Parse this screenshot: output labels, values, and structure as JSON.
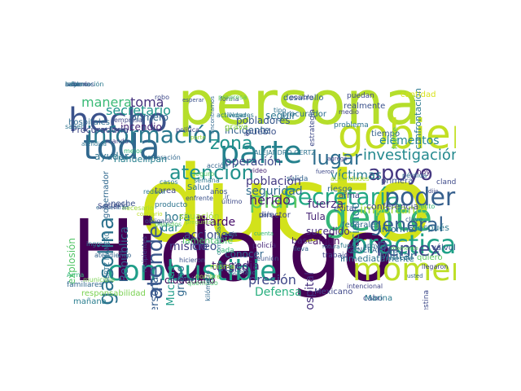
{
  "words": [
    {
      "text": "ducto",
      "color": "#d2e21b",
      "rotate": false
    },
    {
      "text": "Hidalgo",
      "color": "#440154",
      "rotate": false
    },
    {
      "text": "persona",
      "color": "#b5de2b",
      "rotate": false
    },
    {
      "text": "gobierno",
      "color": "#c2df23",
      "rotate": false
    },
    {
      "text": "combustible",
      "color": "#1f9e89",
      "rotate": false
    },
    {
      "text": "gente",
      "color": "#35b779",
      "rotate": false
    },
    {
      "text": "momento",
      "color": "#bddf26",
      "rotate": false
    },
    {
      "text": "toda",
      "color": "#31688e",
      "rotate": false
    },
    {
      "text": "hecho",
      "color": "#3b528b",
      "rotate": false
    },
    {
      "text": "parte",
      "color": "#26828e",
      "rotate": false
    },
    {
      "text": "información",
      "color": "#2a788e",
      "rotate": false
    },
    {
      "text": "Secretaría",
      "color": "#22a884",
      "rotate": false
    },
    {
      "text": "práctica",
      "color": "#1fa187",
      "rotate": false
    },
    {
      "text": "gasolina",
      "color": "#2c728e",
      "rotate": true
    },
    {
      "text": "poder",
      "color": "#355f8d",
      "rotate": false
    },
    {
      "text": "apoyo",
      "color": "#453781",
      "rotate": false
    },
    {
      "text": "atención",
      "color": "#21918c",
      "rotate": false
    },
    {
      "text": "lugar",
      "color": "#2e6e8e",
      "rotate": false
    },
    {
      "text": "general",
      "color": "#34618d",
      "rotate": false
    },
    {
      "text": "Pemex",
      "color": "#3e4a89",
      "rotate": false
    },
    {
      "text": "plan",
      "color": "#5ec962",
      "rotate": false
    },
    {
      "text": "atender",
      "color": "#39568c",
      "rotate": true
    },
    {
      "text": "zona",
      "color": "#20928c",
      "rotate": false
    },
    {
      "text": "investigación",
      "color": "#23898e",
      "rotate": false
    },
    {
      "text": "secretario",
      "color": "#1f968b",
      "rotate": false
    },
    {
      "text": "manera",
      "color": "#3aba76",
      "rotate": false
    },
    {
      "text": "toma",
      "color": "#46327e",
      "rotate": false
    },
    {
      "text": "elementos",
      "color": "#24878e",
      "rotate": false
    },
    {
      "text": "víctimas",
      "color": "#287d8e",
      "rotate": false
    },
    {
      "text": "importante",
      "color": "#a5db36",
      "rotate": false
    },
    {
      "text": "presión",
      "color": "#3f4788",
      "rotate": false
    },
    {
      "text": "Defensa",
      "color": "#29af7f",
      "rotate": false
    },
    {
      "text": "Militar",
      "color": "#2d708e",
      "rotate": false
    },
    {
      "text": "haciendo",
      "color": "#287c8e",
      "rotate": true
    },
    {
      "text": "población",
      "color": "#443a83",
      "rotate": false
    },
    {
      "text": "seguridad",
      "color": "#2f6c8e",
      "rotate": false
    },
    {
      "text": "herido",
      "color": "#482071",
      "rotate": false
    },
    {
      "text": "acciones",
      "color": "#3d4d8a",
      "rotate": false
    },
    {
      "text": "tarde",
      "color": "#450a69",
      "rotate": false
    },
    {
      "text": "mismo",
      "color": "#433e85",
      "rotate": false
    },
    {
      "text": "creo",
      "color": "#3c4f8a",
      "rotate": false
    },
    {
      "text": "hora",
      "color": "#2a768e",
      "rotate": false
    },
    {
      "text": "dar",
      "color": "#25848e",
      "rotate": false
    },
    {
      "text": "personal",
      "color": "#365c8d",
      "rotate": true
    },
    {
      "text": "grupo",
      "color": "#30698e",
      "rotate": true
    },
    {
      "text": "Muchas",
      "color": "#1e9c89",
      "rotate": true
    },
    {
      "text": "República",
      "color": "#33638d",
      "rotate": true
    },
    {
      "text": "explosión",
      "color": "#54c568",
      "rotate": true
    },
    {
      "text": "operación",
      "color": "#3e4989",
      "rotate": false
    },
    {
      "text": "fuerza",
      "color": "#482878",
      "rotate": false
    },
    {
      "text": "Hospital",
      "color": "#46307e",
      "rotate": true
    },
    {
      "text": "delito",
      "color": "#3b528b",
      "rotate": false
    },
    {
      "text": "conocer",
      "color": "#31688e",
      "rotate": false
    },
    {
      "text": "ciudadano",
      "color": "#440154",
      "rotate": false
    },
    {
      "text": "Tula",
      "color": "#482576",
      "rotate": false
    },
    {
      "text": "sucedido",
      "color": "#472d7b",
      "rotate": false
    },
    {
      "text": "algún",
      "color": "#471365",
      "rotate": false
    },
    {
      "text": "base",
      "color": "#472c7a",
      "rotate": false
    },
    {
      "text": "arma",
      "color": "#414487",
      "rotate": false
    },
    {
      "text": "evitar",
      "color": "#3a548c",
      "rotate": false
    },
    {
      "text": "conferencia",
      "color": "#3f4889",
      "rotate": false
    },
    {
      "text": "informar",
      "color": "#2b748e",
      "rotate": false
    },
    {
      "text": "seguir",
      "color": "#2a768e",
      "rotate": false
    },
    {
      "text": "procurador",
      "color": "#2e6f8e",
      "rotate": false
    },
    {
      "text": "pobladores",
      "color": "#38588c",
      "rotate": false
    },
    {
      "text": "incidente",
      "color": "#33628d",
      "rotate": false
    },
    {
      "text": "primero",
      "color": "#31668e",
      "rotate": false
    },
    {
      "text": "incendio",
      "color": "#482475",
      "rotate": false
    },
    {
      "text": "Procuraduría",
      "color": "#3f4788",
      "rotate": false
    },
    {
      "text": "hospitales",
      "color": "#2f6c8e",
      "rotate": false
    },
    {
      "text": "Tlahuelilpan",
      "color": "#27808e",
      "rotate": false
    },
    {
      "text": "ayudar",
      "color": "#2d718e",
      "rotate": false
    },
    {
      "text": "tiempo",
      "color": "#34618d",
      "rotate": false
    },
    {
      "text": "pueblo",
      "color": "#3b528b",
      "rotate": false
    },
    {
      "text": "tarea",
      "color": "#404588",
      "rotate": false
    },
    {
      "text": "Salud",
      "color": "#2e6d8e",
      "rotate": false
    },
    {
      "text": "producto",
      "color": "#2c738e",
      "rotate": false
    },
    {
      "text": "Mexicano",
      "color": "#3f4889",
      "rotate": false
    },
    {
      "text": "inmediatamente",
      "color": "#2c728e",
      "rotate": false
    },
    {
      "text": "después",
      "color": "#2a788e",
      "rotate": false
    },
    {
      "text": "quiero",
      "color": "#5ec962",
      "rotate": false
    },
    {
      "text": "cabo",
      "color": "#3e4989",
      "rotate": false
    },
    {
      "text": "mañana",
      "color": "#287d8e",
      "rotate": false
    },
    {
      "text": "familiares",
      "color": "#31688e",
      "rotate": false
    },
    {
      "text": "años",
      "color": "#3b528b",
      "rotate": false
    },
    {
      "text": "ALEJANDRO GERTZ",
      "color": "#2c728e",
      "rotate": false
    },
    {
      "text": "GENERAL LUIS",
      "color": "#33638d",
      "rotate": false
    },
    {
      "text": "responsabilidad",
      "color": "#7ad151",
      "rotate": false
    },
    {
      "text": "toma clandestina",
      "color": "#3e4a89",
      "rotate": true
    },
    {
      "text": "Marina",
      "color": "#2a788e",
      "rotate": false
    },
    {
      "text": "intencional",
      "color": "#414487",
      "rotate": false
    },
    {
      "text": "policía",
      "color": "#482878",
      "rotate": false
    },
    {
      "text": "reunión",
      "color": "#3b528b",
      "rotate": false
    },
    {
      "text": "trabajo",
      "color": "#3f4788",
      "rotate": false
    },
    {
      "text": "federales",
      "color": "#31688e",
      "rotate": false
    },
    {
      "text": "riesgo",
      "color": "#33638d",
      "rotate": false
    },
    {
      "text": "válvula",
      "color": "#3b528b",
      "rotate": false
    },
    {
      "text": "confrontación",
      "color": "#2a788e",
      "rotate": true
    },
    {
      "text": "cantidad",
      "color": "#d8e219",
      "rotate": false
    },
    {
      "text": "problema",
      "color": "#2c728e",
      "rotate": false
    },
    {
      "text": "estrategia",
      "color": "#3e4989",
      "rotate": true
    },
    {
      "text": "situación",
      "color": "#a0da39",
      "rotate": false
    },
    {
      "text": "gobernador",
      "color": "#31688e",
      "rotate": true
    },
    {
      "text": "lamentable",
      "color": "#4ac16d",
      "rotate": false
    },
    {
      "text": "tragedia",
      "color": "#482475",
      "rotate": false
    },
    {
      "text": "grave",
      "color": "#8fd744",
      "rotate": false
    },
    {
      "text": "llegar",
      "color": "#2a788e",
      "rotate": false
    },
    {
      "text": "seguro",
      "color": "#5ec962",
      "rotate": false
    },
    {
      "text": "salida",
      "color": "#33638d",
      "rotate": false
    },
    {
      "text": "director",
      "color": "#3f4788",
      "rotate": false
    },
    {
      "text": "misma",
      "color": "#a5db36",
      "rotate": false
    },
    {
      "text": "cada",
      "color": "#35b779",
      "rotate": false
    },
    {
      "text": "primera",
      "color": "#3b528b",
      "rotate": false
    },
    {
      "text": "clandestina",
      "color": "#3e4a89",
      "rotate": false
    },
    {
      "text": "pérdida",
      "color": "#31688e",
      "rotate": false
    },
    {
      "text": "autoridades",
      "color": "#b5de2b",
      "rotate": false
    },
    {
      "text": "actividades",
      "color": "#2a788e",
      "rotate": false
    },
    {
      "text": "desarrollo",
      "color": "#33638d",
      "rotate": false
    },
    {
      "text": "realmente",
      "color": "#3b528b",
      "rotate": false
    },
    {
      "text": "puedan",
      "color": "#3e4989",
      "rotate": false
    },
    {
      "text": "medio",
      "color": "#414487",
      "rotate": false
    },
    {
      "text": "tipo",
      "color": "#2c728e",
      "rotate": false
    },
    {
      "text": "forma",
      "color": "#3b528b",
      "rotate": false
    },
    {
      "text": "hoy",
      "color": "#482475",
      "rotate": false
    },
    {
      "text": "dijo",
      "color": "#3e4a89",
      "rotate": false
    },
    {
      "text": "apoyar",
      "color": "#31688e",
      "rotate": false
    },
    {
      "text": "fuga",
      "color": "#2a788e",
      "rotate": false
    },
    {
      "text": "clave",
      "color": "#33638d",
      "rotate": false
    },
    {
      "text": "noche",
      "color": "#3b528b",
      "rotate": false
    },
    {
      "text": "política",
      "color": "#414487",
      "rotate": false
    },
    {
      "text": "robo",
      "color": "#3e4989",
      "rotate": false
    },
    {
      "text": "progresa",
      "color": "#5ec962",
      "rotate": false
    },
    {
      "text": "empresa",
      "color": "#3f4788",
      "rotate": false
    },
    {
      "text": "saber",
      "color": "#2c728e",
      "rotate": false
    },
    {
      "text": "mejor",
      "color": "#35b779",
      "rotate": false
    },
    {
      "text": "perforación",
      "color": "#31688e",
      "rotate": false
    },
    {
      "text": "obligado",
      "color": "#3b528b",
      "rotate": false
    },
    {
      "text": "semana",
      "color": "#2a788e",
      "rotate": false
    },
    {
      "text": "acción",
      "color": "#33638d",
      "rotate": false
    },
    {
      "text": "último",
      "color": "#3e4a89",
      "rotate": false
    },
    {
      "text": "video",
      "color": "#482475",
      "rotate": false
    },
    {
      "text": "nombre",
      "color": "#8fd744",
      "rotate": false
    },
    {
      "text": "municipio",
      "color": "#7ad151",
      "rotate": false
    },
    {
      "text": "necesario",
      "color": "#a0da39",
      "rotate": false
    },
    {
      "text": "através",
      "color": "#3b528b",
      "rotate": false
    },
    {
      "text": "encuentran",
      "color": "#31688e",
      "rotate": false
    },
    {
      "text": "Social",
      "color": "#3e4989",
      "rotate": false
    },
    {
      "text": "ingreso",
      "color": "#2a788e",
      "rotate": false
    },
    {
      "text": "atendiendo",
      "color": "#33638d",
      "rotate": false
    },
    {
      "text": "llegaron",
      "color": "#414487",
      "rotate": false
    },
    {
      "text": "GERTZ MANERO",
      "color": "#2c728e",
      "rotate": true
    },
    {
      "text": "fuerte",
      "color": "#5ec962",
      "rotate": true
    },
    {
      "text": "lento",
      "color": "#35b779",
      "rotate": false
    },
    {
      "text": "ir",
      "color": "#3b528b",
      "rotate": false
    },
    {
      "text": "quemado",
      "color": "#4ac16d",
      "rotate": false
    },
    {
      "text": "kilómetro",
      "color": "#31688e",
      "rotate": true
    },
    {
      "text": "reducir",
      "color": "#2a788e",
      "rotate": false
    },
    {
      "text": "contrario",
      "color": "#bddf26",
      "rotate": false
    },
    {
      "text": "posible",
      "color": "#3e4a89",
      "rotate": false
    },
    {
      "text": "lleva",
      "color": "#33638d",
      "rotate": false
    },
    {
      "text": "hicieron",
      "color": "#3b528b",
      "rotate": false
    },
    {
      "text": "mando",
      "color": "#414487",
      "rotate": false
    },
    {
      "text": "atendida",
      "color": "#2c728e",
      "rotate": false
    },
    {
      "text": "recipientes",
      "color": "#3e4989",
      "rotate": true
    },
    {
      "text": "pasados",
      "color": "#5ec962",
      "rotate": false
    },
    {
      "text": "preguntas",
      "color": "#8fd744",
      "rotate": false
    },
    {
      "text": "escenario",
      "color": "#31688e",
      "rotate": false
    },
    {
      "text": "enfrente",
      "color": "#3b528b",
      "rotate": false
    },
    {
      "text": "casos",
      "color": "#2a788e",
      "rotate": false
    },
    {
      "text": "aseguró",
      "color": "#33638d",
      "rotate": false
    },
    {
      "text": "Arma",
      "color": "#35b779",
      "rotate": false
    },
    {
      "text": "seis",
      "color": "#2c728e",
      "rotate": false
    },
    {
      "text": "lo",
      "color": "#3e4a89",
      "rotate": false
    },
    {
      "text": "país",
      "color": "#3b528b",
      "rotate": false
    },
    {
      "text": "parte",
      "color": "#a5db36",
      "rotate": false
    },
    {
      "text": "encontramos",
      "color": "#31688e",
      "rotate": true
    },
    {
      "text": "agregó",
      "color": "#414487",
      "rotate": false
    },
    {
      "text": "comunidad",
      "color": "#2a788e",
      "rotate": true
    },
    {
      "text": "momento",
      "color": "#5ec962",
      "rotate": false
    },
    {
      "text": "esperar",
      "color": "#3b528b",
      "rotate": false
    },
    {
      "text": "usted",
      "color": "#33638d",
      "rotate": false
    },
    {
      "text": "rotura",
      "color": "#2c728e",
      "rotate": false
    },
    {
      "text": "fueron",
      "color": "#3e4989",
      "rotate": false
    },
    {
      "text": "cuenta",
      "color": "#35b779",
      "rotate": false
    },
    {
      "text": "hay",
      "color": "#31688e",
      "rotate": false
    },
    {
      "text": "ordenó",
      "color": "#414487",
      "rotate": false
    },
    {
      "text": "información",
      "color": "#2a788e",
      "rotate": false
    },
    {
      "text": "sabemos",
      "color": "#3b528b",
      "rotate": false
    },
    {
      "text": "casa",
      "color": "#33638d",
      "rotate": false
    },
    {
      "text": "saldo",
      "color": "#2c728e",
      "rotate": false
    }
  ]
}
